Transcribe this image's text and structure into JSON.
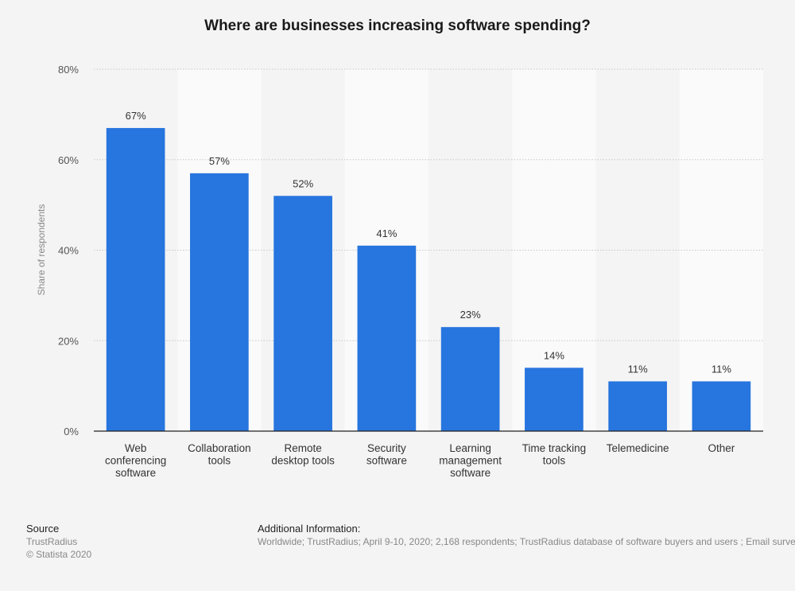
{
  "chart_data": {
    "type": "bar",
    "title": "Where are businesses increasing software spending?",
    "ylabel": "Share of respondents",
    "xlabel": "",
    "ylim": [
      0,
      80
    ],
    "yticks": [
      0,
      20,
      40,
      60,
      80
    ],
    "ytick_labels": [
      "0%",
      "20%",
      "40%",
      "60%",
      "80%"
    ],
    "grid": true,
    "categories": [
      "Web conferencing software",
      "Collaboration tools",
      "Remote desktop tools",
      "Security software",
      "Learning management software",
      "Time tracking tools",
      "Telemedicine",
      "Other"
    ],
    "category_label_lines": [
      [
        "Web",
        "conferencing",
        "software"
      ],
      [
        "Collaboration",
        "tools"
      ],
      [
        "Remote",
        "desktop tools"
      ],
      [
        "Security",
        "software"
      ],
      [
        "Learning",
        "management",
        "software"
      ],
      [
        "Time tracking",
        "tools"
      ],
      [
        "Telemedicine"
      ],
      [
        "Other"
      ]
    ],
    "values": [
      67,
      57,
      52,
      41,
      23,
      14,
      11,
      11
    ],
    "value_labels": [
      "67%",
      "57%",
      "52%",
      "41%",
      "23%",
      "14%",
      "11%",
      "11%"
    ],
    "bar_color": "#2775de"
  },
  "footer": {
    "source_heading": "Source",
    "source_name": "TrustRadius",
    "copyright": "© Statista 2020",
    "additional_heading": "Additional Information:",
    "additional_text": "Worldwide; TrustRadius; April 9-10, 2020; 2,168 respondents; TrustRadius database of software buyers and users ; Email survey"
  }
}
